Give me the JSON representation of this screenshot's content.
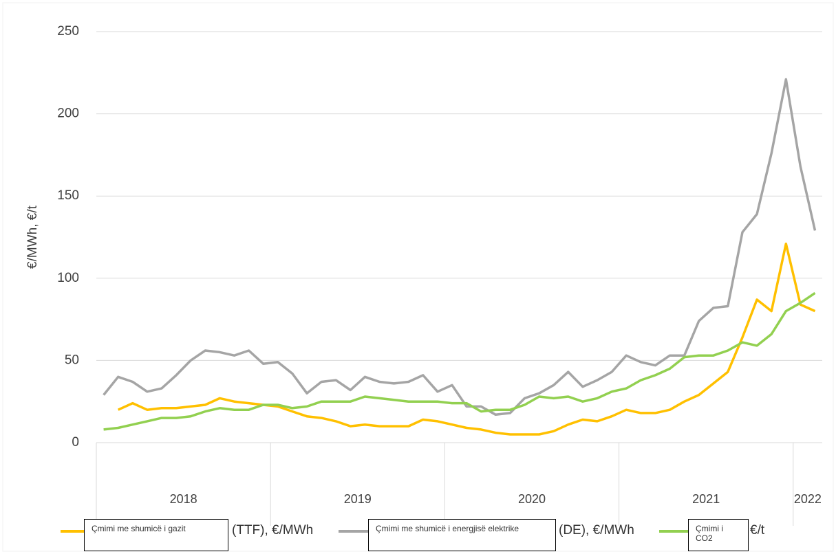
{
  "chart_data": {
    "type": "line",
    "y_label": "€/MWh, €/t",
    "year_labels": [
      "2018",
      "2019",
      "2020",
      "2021",
      "2022"
    ],
    "ylim": [
      0,
      250
    ],
    "yticks": [
      0,
      50,
      100,
      150,
      200,
      250
    ],
    "grid": true,
    "series": [
      {
        "name": "Çmimi me shumicë i gazit",
        "unit": "(TTF), €/MWh",
        "color": "#ffc000",
        "values": [
          null,
          20,
          24,
          20,
          21,
          21,
          22,
          23,
          27,
          25,
          24,
          23,
          22,
          19,
          16,
          15,
          13,
          10,
          11,
          10,
          10,
          10,
          14,
          13,
          11,
          9,
          8,
          6,
          5,
          5,
          5,
          7,
          11,
          14,
          13,
          16,
          20,
          18,
          18,
          20,
          25,
          29,
          36,
          43,
          64,
          87,
          80,
          121,
          84,
          80
        ]
      },
      {
        "name": "Çmimi me shumicë i energjisë elektrike",
        "unit": "(DE), €/MWh",
        "color": "#a5a5a5",
        "values": [
          29,
          40,
          37,
          31,
          33,
          41,
          50,
          56,
          55,
          53,
          56,
          48,
          49,
          42,
          30,
          37,
          38,
          32,
          40,
          37,
          36,
          37,
          41,
          31,
          35,
          22,
          22,
          17,
          18,
          27,
          30,
          35,
          43,
          34,
          38,
          43,
          53,
          49,
          47,
          53,
          53,
          74,
          82,
          83,
          128,
          139,
          176,
          221,
          168,
          129
        ]
      },
      {
        "name": "Çmimi i CO2",
        "unit": "€/t",
        "color": "#92d050",
        "values": [
          8,
          9,
          11,
          13,
          15,
          15,
          16,
          19,
          21,
          20,
          20,
          23,
          23,
          21,
          22,
          25,
          25,
          25,
          28,
          27,
          26,
          25,
          25,
          25,
          24,
          24,
          19,
          20,
          20,
          23,
          28,
          27,
          28,
          25,
          27,
          31,
          33,
          38,
          41,
          45,
          52,
          53,
          53,
          56,
          61,
          59,
          66,
          80,
          85,
          91
        ]
      }
    ]
  }
}
